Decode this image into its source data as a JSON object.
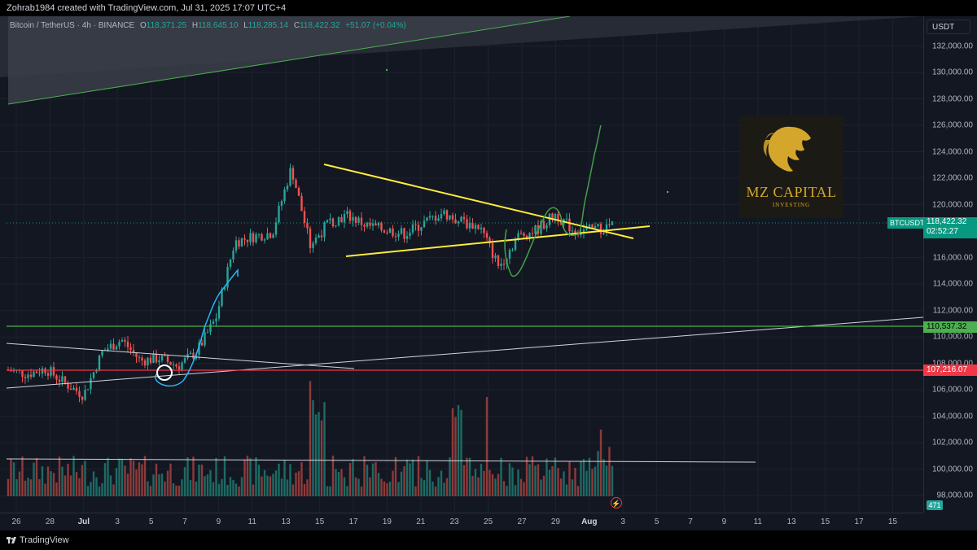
{
  "header": {
    "caption": "Zohrab1984 created with TradingView.com, Jul 31, 2025 17:07 UTC+4"
  },
  "symbol": {
    "title": "Bitcoin / TetherUS · 4h · BINANCE",
    "open_label": "O",
    "open": "118,371.25",
    "high_label": "H",
    "high": "118,645.10",
    "low_label": "L",
    "low": "118,285.14",
    "close_label": "C",
    "close": "118,422.32",
    "change": "+51.07 (+0.04%)"
  },
  "price_axis": {
    "currency": "USDT",
    "labels": [
      "132,000.00",
      "130,000.00",
      "128,000.00",
      "126,000.00",
      "124,000.00",
      "122,000.00",
      "120,000.00",
      "116,000.00",
      "114,000.00",
      "112,000.00",
      "110,000.00",
      "108,000.00",
      "106,000.00",
      "104,000.00",
      "102,000.00",
      "100,000.00",
      "98,000.00"
    ]
  },
  "time_axis": {
    "labels": [
      "26",
      "28",
      "Jul",
      "3",
      "5",
      "7",
      "9",
      "11",
      "13",
      "15",
      "17",
      "19",
      "21",
      "23",
      "25",
      "27",
      "29",
      "Aug",
      "3",
      "5",
      "7",
      "9",
      "11",
      "13",
      "15",
      "17",
      "15"
    ]
  },
  "tags": {
    "symbol_tag": "BTCUSDT",
    "current_price": "118,422.32",
    "countdown": "02:52:27",
    "green_level": "110,537.32",
    "red_level": "107,216.07",
    "volume_badge": "471"
  },
  "watermark": {
    "main": "MZ CAPITAL",
    "sub": "INVESTING"
  },
  "footer": {
    "brand": "TradingView"
  },
  "colors": {
    "up": "#26a69a",
    "down": "#ef5350",
    "triangle": "#ffeb3b",
    "support_green": "#4caf50",
    "support_red": "#f23645",
    "blue_path": "#29b6f6",
    "green_path": "#43a047",
    "gold": "#d4a72c"
  },
  "chart_data": {
    "type": "candlestick",
    "symbol": "BTCUSDT",
    "interval": "4h",
    "ylim": [
      97000,
      133000
    ],
    "close_path": [
      {
        "d": "Jun 26",
        "p": 107500
      },
      {
        "d": "Jun 28",
        "p": 107200
      },
      {
        "d": "Jun 30",
        "p": 107600
      },
      {
        "d": "Jul 1",
        "p": 106500
      },
      {
        "d": "Jul 2",
        "p": 105600
      },
      {
        "d": "Jul 3",
        "p": 108900
      },
      {
        "d": "Jul 4",
        "p": 109800
      },
      {
        "d": "Jul 5",
        "p": 108200
      },
      {
        "d": "Jul 7",
        "p": 108400
      },
      {
        "d": "Jul 8",
        "p": 107800
      },
      {
        "d": "Jul 9",
        "p": 108900
      },
      {
        "d": "Jul 10",
        "p": 111400
      },
      {
        "d": "Jul 11",
        "p": 117200
      },
      {
        "d": "Jul 12",
        "p": 117600
      },
      {
        "d": "Jul 13",
        "p": 117900
      },
      {
        "d": "Jul 14",
        "p": 122800
      },
      {
        "d": "Jul 15",
        "p": 116900
      },
      {
        "d": "Jul 16",
        "p": 118700
      },
      {
        "d": "Jul 17",
        "p": 119200
      },
      {
        "d": "Jul 18",
        "p": 118400
      },
      {
        "d": "Jul 19",
        "p": 118100
      },
      {
        "d": "Jul 20",
        "p": 117800
      },
      {
        "d": "Jul 21",
        "p": 118600
      },
      {
        "d": "Jul 22",
        "p": 119400
      },
      {
        "d": "Jul 23",
        "p": 118700
      },
      {
        "d": "Jul 24",
        "p": 118300
      },
      {
        "d": "Jul 25",
        "p": 115300
      },
      {
        "d": "Jul 26",
        "p": 117600
      },
      {
        "d": "Jul 27",
        "p": 118100
      },
      {
        "d": "Jul 28",
        "p": 119300
      },
      {
        "d": "Jul 29",
        "p": 118000
      },
      {
        "d": "Jul 30",
        "p": 118100
      },
      {
        "d": "Jul 31",
        "p": 118422
      }
    ],
    "horizontal_levels": [
      110537.32,
      107216.07
    ]
  }
}
